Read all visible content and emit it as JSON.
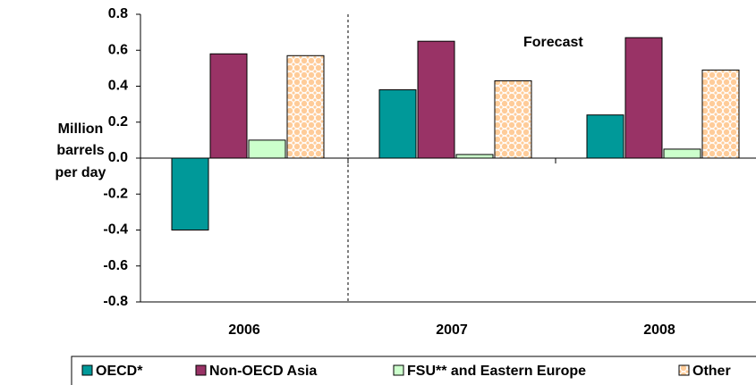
{
  "chart_data": {
    "type": "bar",
    "y_label": [
      "Million",
      "barrels",
      "per day"
    ],
    "annotation": "Forecast",
    "categories": [
      "2006",
      "2007",
      "2008"
    ],
    "series": [
      {
        "name": "OECD*",
        "color": "#009999",
        "values": [
          -0.4,
          0.38,
          0.24
        ]
      },
      {
        "name": "Non-OECD Asia",
        "color": "#993366",
        "values": [
          0.58,
          0.65,
          0.67
        ]
      },
      {
        "name": "FSU** and Eastern Europe",
        "color": "#ccffcc",
        "values": [
          0.1,
          0.02,
          0.05
        ]
      },
      {
        "name": "Other",
        "color": "#ffcc99",
        "pattern": "dots",
        "values": [
          0.57,
          0.43,
          0.49
        ]
      }
    ],
    "ylim": [
      -0.8,
      0.8
    ],
    "yticks": [
      -0.8,
      -0.6,
      -0.4,
      -0.2,
      {
        "value": 0,
        "label": "0.0"
      },
      0.2,
      0.4,
      0.6,
      0.8
    ],
    "legend": "bottom"
  }
}
